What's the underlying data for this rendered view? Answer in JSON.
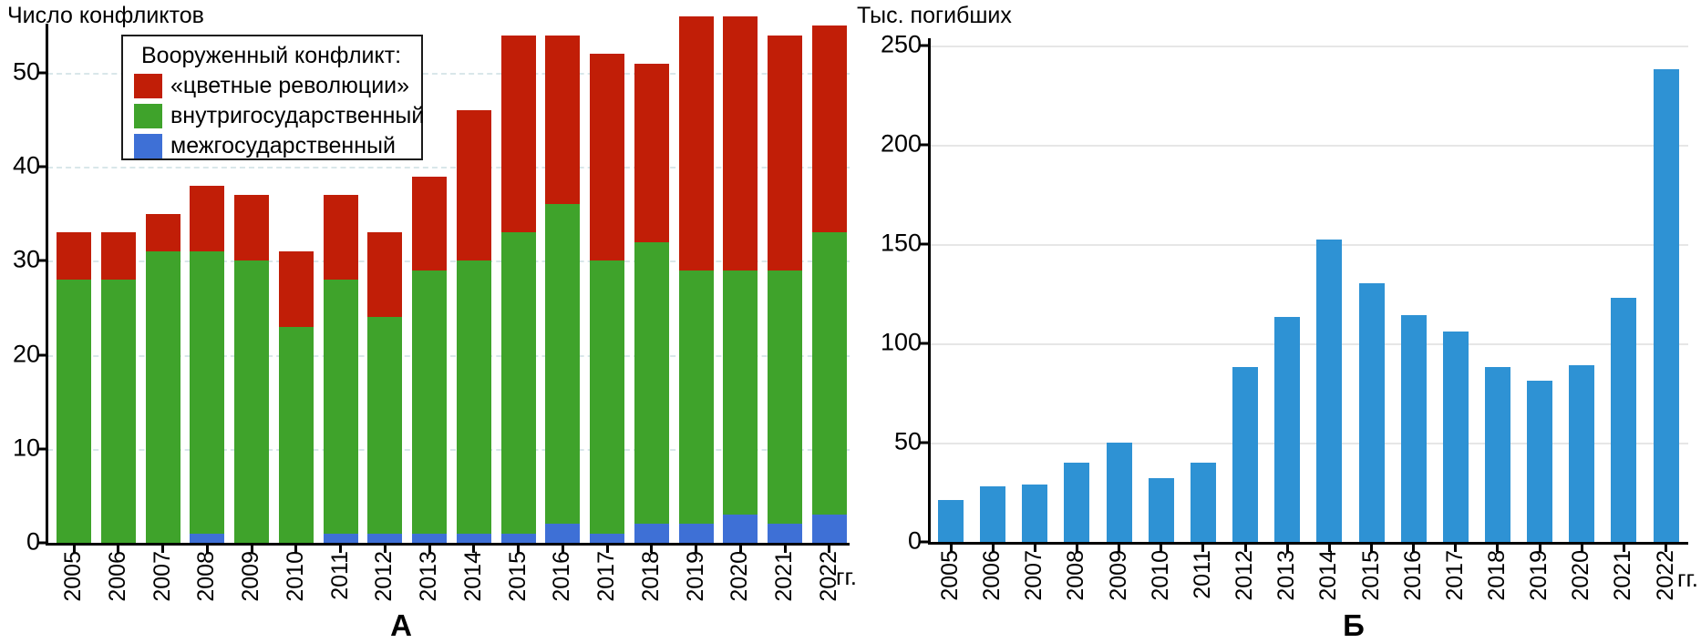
{
  "chart_data": [
    {
      "id": "A",
      "type": "bar",
      "stacked": true,
      "title": "Число конфликтов",
      "caption": "А",
      "x_suffix_label": "гг.",
      "categories": [
        "2005",
        "2006",
        "2007",
        "2008",
        "2009",
        "2010",
        "2011",
        "2012",
        "2013",
        "2014",
        "2015",
        "2016",
        "2017",
        "2018",
        "2019",
        "2020",
        "2021",
        "2022"
      ],
      "series": [
        {
          "name": "межгосударственный",
          "color": "#3e70d6",
          "values": [
            0,
            0,
            0,
            1,
            0,
            0,
            1,
            1,
            1,
            1,
            1,
            2,
            1,
            2,
            2,
            3,
            2,
            3
          ]
        },
        {
          "name": "внутригосударственный",
          "color": "#3fa32b",
          "values": [
            28,
            28,
            31,
            30,
            30,
            23,
            27,
            23,
            28,
            29,
            32,
            34,
            29,
            30,
            27,
            26,
            27,
            30
          ]
        },
        {
          "name": "«цветные революции»",
          "color": "#c11e07",
          "values": [
            5,
            5,
            4,
            7,
            7,
            8,
            9,
            9,
            10,
            16,
            21,
            18,
            22,
            19,
            27,
            27,
            25,
            22
          ]
        }
      ],
      "legend": {
        "title": "Вооруженный конфликт:",
        "order_top_to_bottom": [
          "«цветные революции»",
          "внутригосударственный",
          "межгосударственный"
        ]
      },
      "ylabel": "Число конфликтов",
      "yticks": [
        0,
        10,
        20,
        30,
        40,
        50
      ],
      "ylim": [
        0,
        56
      ],
      "grid": "dashed",
      "legend_position": "top-left-inside"
    },
    {
      "id": "B",
      "type": "bar",
      "stacked": false,
      "title": "Тыс. погибших",
      "caption": "Б",
      "x_suffix_label": "гг.",
      "categories": [
        "2005",
        "2006",
        "2007",
        "2008",
        "2009",
        "2010",
        "2011",
        "2012",
        "2013",
        "2014",
        "2015",
        "2016",
        "2017",
        "2018",
        "2019",
        "2020",
        "2021",
        "2022"
      ],
      "series": [
        {
          "name": "Тыс. погибших",
          "color": "#2e92d4",
          "values": [
            21,
            28,
            29,
            40,
            50,
            32,
            40,
            88,
            113,
            152,
            130,
            114,
            106,
            88,
            81,
            89,
            123,
            238
          ]
        }
      ],
      "ylabel": "Тыс. погибших",
      "yticks": [
        0,
        50,
        100,
        150,
        200,
        250
      ],
      "ylim": [
        0,
        250
      ],
      "grid": "solid",
      "legend_position": "none"
    }
  ]
}
